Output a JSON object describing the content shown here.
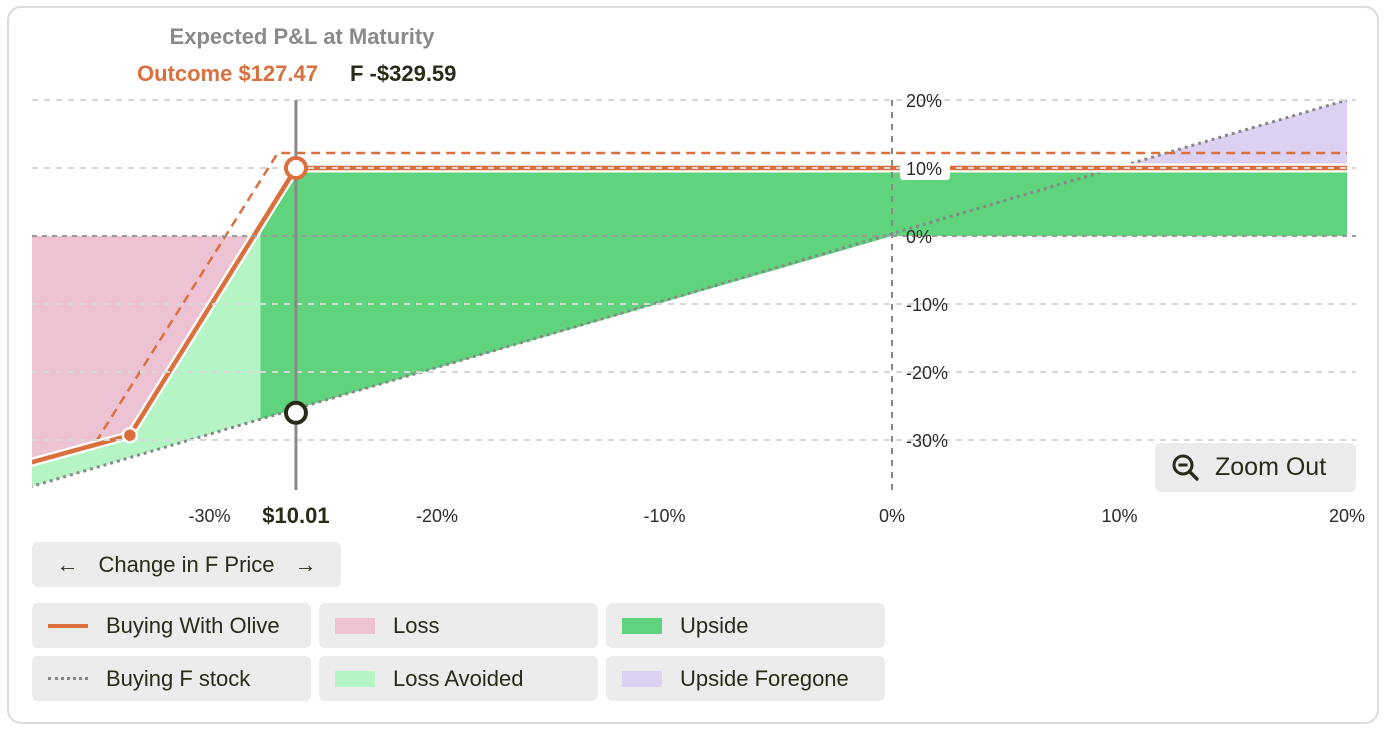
{
  "header": {
    "title": "Expected P&L at Maturity",
    "outcome_label": "Outcome $127.47",
    "stock_label": "F -$329.59"
  },
  "marker_label": "$10.01",
  "zoom_label": "Zoom Out",
  "axis_selector": {
    "label": "Change in F Price",
    "left_arrow": "←",
    "right_arrow": "→"
  },
  "legend": {
    "buying_with_olive": "Buying With Olive",
    "buying_stock": "Buying F stock",
    "loss": "Loss",
    "loss_avoided": "Loss Avoided",
    "upside": "Upside",
    "upside_foregone": "Upside Foregone"
  },
  "colors": {
    "olive_line": "#d9703e",
    "stock_line": "#888888",
    "loss": "#edc3d4",
    "loss_avoided": "#b5f5c5",
    "upside": "#5fd47c",
    "upside_foregone": "#dcd1f0",
    "grid": "#d8d8d8"
  },
  "chart_data": {
    "type": "line",
    "title": "Expected P&L at Maturity",
    "xlabel": "Change in F Price",
    "ylabel": "",
    "x_tick_labels": [
      "-30%",
      "-20%",
      "-10%",
      "0%",
      "10%",
      "20%"
    ],
    "x_ticks": [
      -30,
      -20,
      -10,
      0,
      10,
      20
    ],
    "y_tick_labels": [
      "20%",
      "10%",
      "0%",
      "-10%",
      "-20%",
      "-30%"
    ],
    "y_ticks": [
      20,
      10,
      0,
      -10,
      -20,
      -30
    ],
    "xlim": [
      -38.5,
      20
    ],
    "ylim": [
      -38,
      20
    ],
    "grid": true,
    "series": [
      {
        "name": "Buying With Olive",
        "style": "solid",
        "x": [
          -38.5,
          -33.5,
          -26.2,
          20
        ],
        "y": [
          -33.9,
          -29.3,
          10,
          10
        ]
      },
      {
        "name": "Buying F stock",
        "style": "dotted",
        "x": [
          -38.5,
          20
        ],
        "y": [
          -37.5,
          20
        ]
      }
    ],
    "reference_lines": [
      {
        "style": "dashed",
        "x": [
          -35,
          -27,
          20
        ],
        "y": [
          -30.3,
          12.2,
          12.2
        ]
      }
    ],
    "markers": [
      {
        "x": -26.2,
        "y": 10
      },
      {
        "x": -26.2,
        "y": -26
      },
      {
        "x": -33.5,
        "y": -29.3
      }
    ],
    "selected_x": -26.2
  }
}
